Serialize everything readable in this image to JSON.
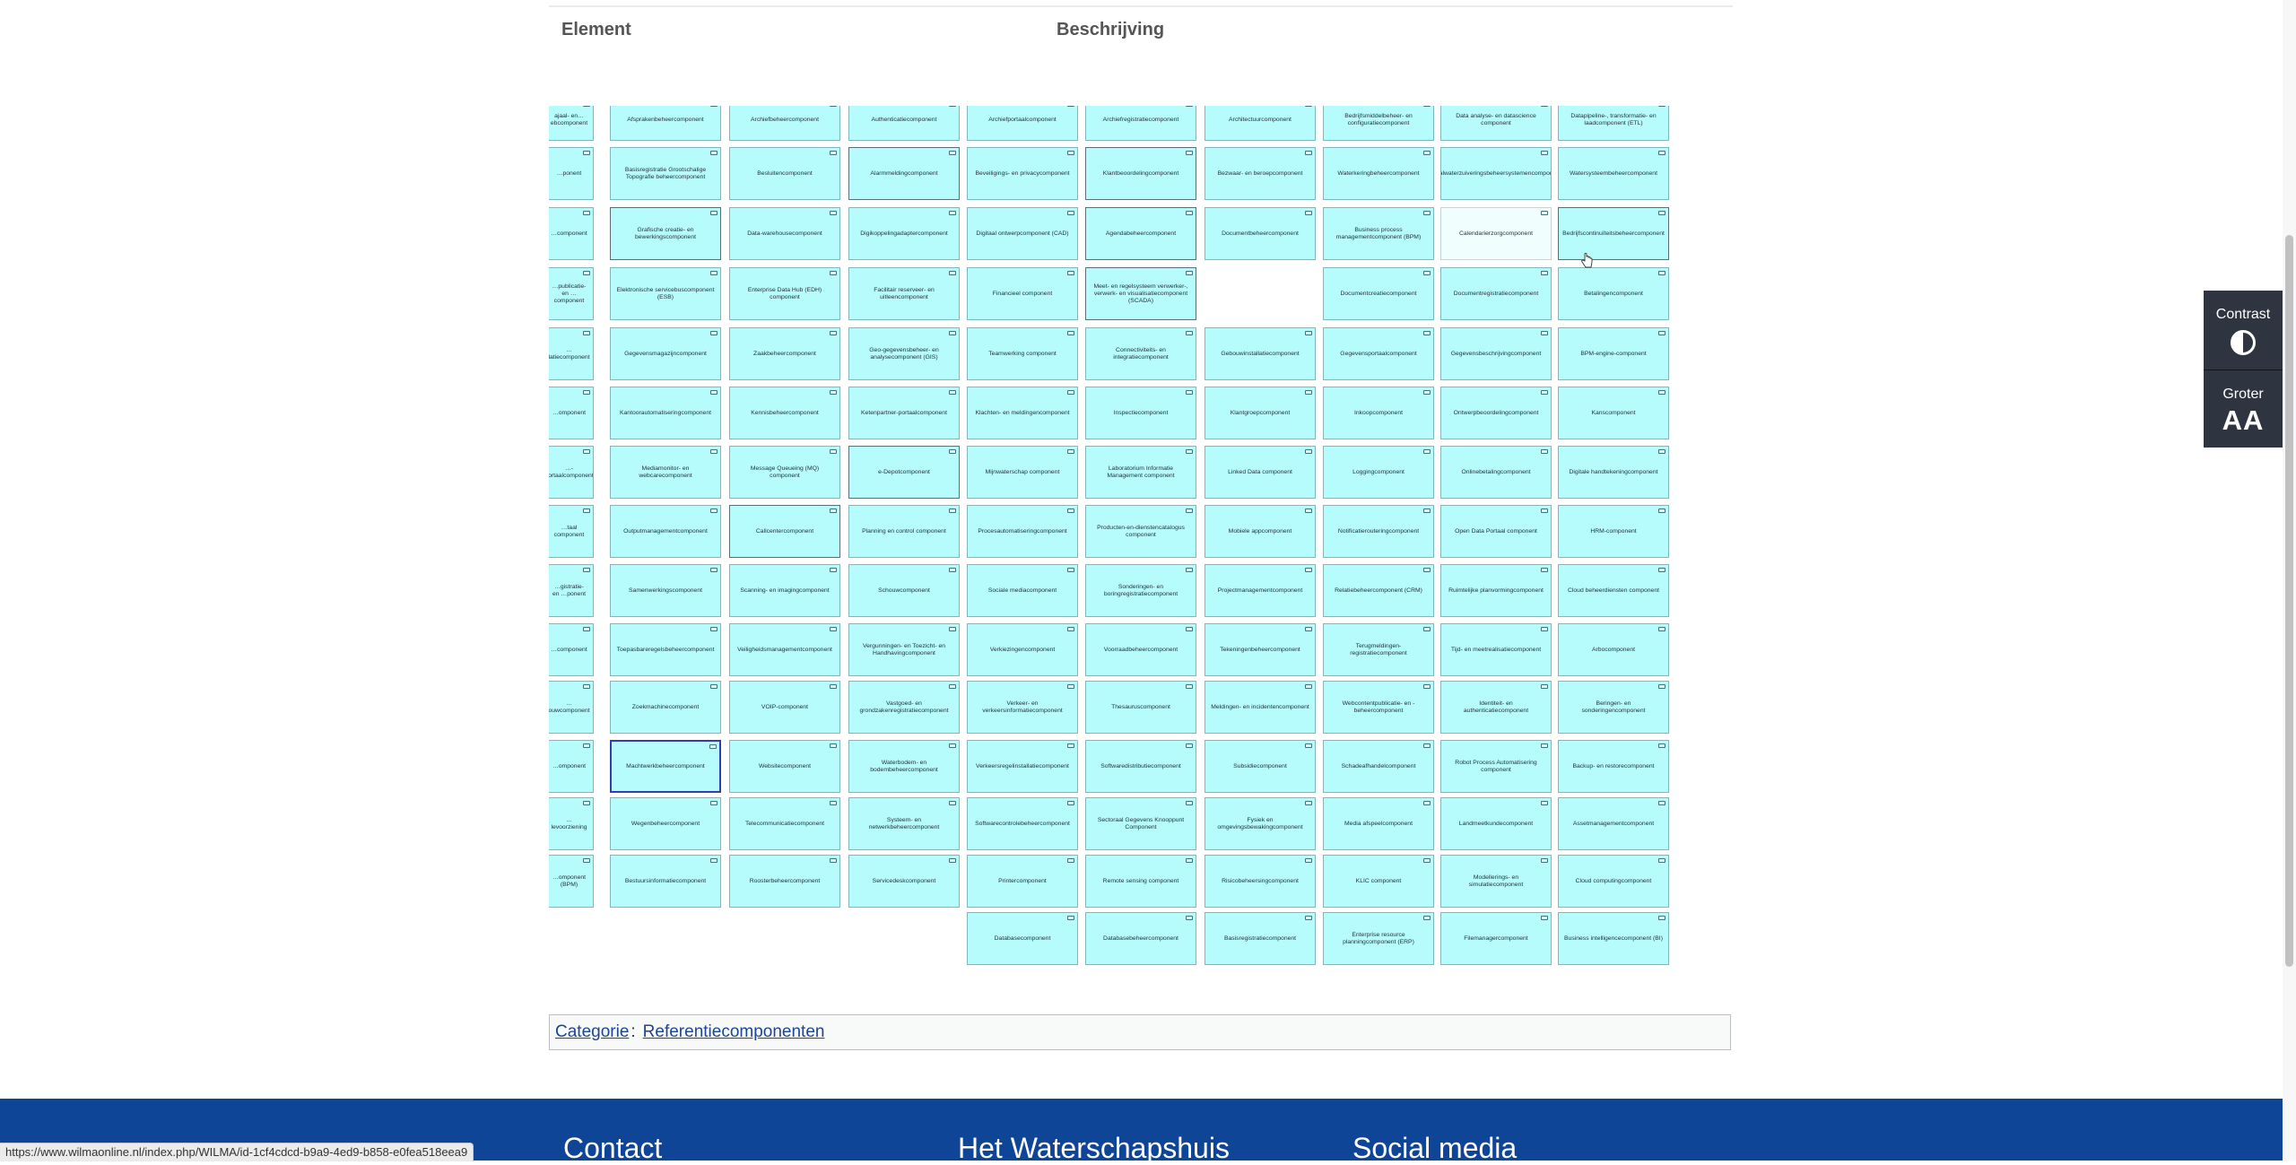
{
  "table": {
    "col_element": "Element",
    "col_description": "Beschrijving"
  },
  "diagram": {
    "cells": [
      {
        "col": 0,
        "row": 0,
        "label": "ajaal- en…ebcomponent"
      },
      {
        "col": 1,
        "row": 0,
        "label": "Afsprakenbeheercomponent"
      },
      {
        "col": 2,
        "row": 0,
        "label": "Archiefbeheercomponent"
      },
      {
        "col": 3,
        "row": 0,
        "label": "Authenticatiecomponent"
      },
      {
        "col": 4,
        "row": 0,
        "label": "Archiefportaalcomponent"
      },
      {
        "col": 5,
        "row": 0,
        "label": "Archiefregistratiecomponent"
      },
      {
        "col": 6,
        "row": 0,
        "label": "Architectuurcomponent"
      },
      {
        "col": 7,
        "row": 0,
        "label": "Bedrijfsmiddelbeheer- en configuratiecomponent"
      },
      {
        "col": 8,
        "row": 0,
        "label": "Data analyse- en datascience component"
      },
      {
        "col": 9,
        "row": 0,
        "label": "Datapipeline-, transformatie- en laadcomponent (ETL)"
      },
      {
        "col": 0,
        "row": 1,
        "label": "…ponent"
      },
      {
        "col": 1,
        "row": 1,
        "label": "Basisregistratie Grootschalige Topografie beheercomponent"
      },
      {
        "col": 2,
        "row": 1,
        "label": "Besluitencomponent"
      },
      {
        "col": 3,
        "row": 1,
        "label": "Alarmmeldingcomponent",
        "style": "dark"
      },
      {
        "col": 4,
        "row": 1,
        "label": "Beveiligings- en privacycomponent"
      },
      {
        "col": 5,
        "row": 1,
        "label": "Klantbeoordelingcomponent",
        "style": "dark"
      },
      {
        "col": 6,
        "row": 1,
        "label": "Bezwaar- en beroepcomponent"
      },
      {
        "col": 7,
        "row": 1,
        "label": "Waterkeringbeheercomponent"
      },
      {
        "col": 8,
        "row": 1,
        "label": "Afvalwaterzuiveringsbeheersystemencomponent"
      },
      {
        "col": 9,
        "row": 1,
        "label": "Watersysteembeheercomponent"
      },
      {
        "col": 0,
        "row": 2,
        "label": "…component"
      },
      {
        "col": 1,
        "row": 2,
        "label": "Grafische creatie- en bewerkingscomponent",
        "style": "dark"
      },
      {
        "col": 2,
        "row": 2,
        "label": "Data-warehousecomponent"
      },
      {
        "col": 3,
        "row": 2,
        "label": "Digikoppelingadaptercomponent"
      },
      {
        "col": 4,
        "row": 2,
        "label": "Digitaal ontwerpcomponent (CAD)"
      },
      {
        "col": 5,
        "row": 2,
        "label": "Agendabeheercomponent",
        "style": "dark"
      },
      {
        "col": 6,
        "row": 2,
        "label": "Documentbeheercomponent"
      },
      {
        "col": 7,
        "row": 2,
        "label": "Business process managementcomponent (BPM)"
      },
      {
        "col": 8,
        "row": 2,
        "label": "Calendarierzorgcomponent",
        "style": "light"
      },
      {
        "col": 9,
        "row": 2,
        "label": "Bedrijfscontinuïteitsbeheercomponent",
        "style": "dark"
      },
      {
        "col": 0,
        "row": 3,
        "label": "…publicatie- en …component"
      },
      {
        "col": 1,
        "row": 3,
        "label": "Elektronische servicebuscomponent (ESB)"
      },
      {
        "col": 2,
        "row": 3,
        "label": "Enterprise Data Hub (EDH) component"
      },
      {
        "col": 3,
        "row": 3,
        "label": "Facilitair reserveer- en uitleencomponent"
      },
      {
        "col": 4,
        "row": 3,
        "label": "Financieel component"
      },
      {
        "col": 5,
        "row": 3,
        "label": "Meet- en regelsysteem verwerker-, verwerk- en visualisatiecomponent (SCADA)",
        "style": "dark"
      },
      {
        "col": 7,
        "row": 3,
        "label": "Documentcreatiecomponent"
      },
      {
        "col": 8,
        "row": 3,
        "label": "Documentregistratiecomponent"
      },
      {
        "col": 9,
        "row": 3,
        "label": "Betalingencomponent"
      },
      {
        "col": 0,
        "row": 4,
        "label": "…latiecomponent"
      },
      {
        "col": 1,
        "row": 4,
        "label": "Gegevensmagazijncomponent"
      },
      {
        "col": 2,
        "row": 4,
        "label": "Zaakbeheercomponent"
      },
      {
        "col": 3,
        "row": 4,
        "label": "Geo-gegevensbeheer- en analysecomponent (GIS)"
      },
      {
        "col": 4,
        "row": 4,
        "label": "Teamwerking component"
      },
      {
        "col": 5,
        "row": 4,
        "label": "Connectiviteits- en integratiecomponent"
      },
      {
        "col": 6,
        "row": 4,
        "label": "Gebouwinstallatiecomponent"
      },
      {
        "col": 7,
        "row": 4,
        "label": "Gegevensportaalcomponent"
      },
      {
        "col": 8,
        "row": 4,
        "label": "Gegevensbeschrijvingcomponent"
      },
      {
        "col": 9,
        "row": 4,
        "label": "BPM-engine-component"
      },
      {
        "col": 0,
        "row": 5,
        "label": "…omponent"
      },
      {
        "col": 1,
        "row": 5,
        "label": "Kantoorautomatiseringcomponent"
      },
      {
        "col": 2,
        "row": 5,
        "label": "Kennisbeheercomponent"
      },
      {
        "col": 3,
        "row": 5,
        "label": "Ketenpartner-portaalcomponent"
      },
      {
        "col": 4,
        "row": 5,
        "label": "Klachten- en meldingencomponent"
      },
      {
        "col": 5,
        "row": 5,
        "label": "Inspectiecomponent"
      },
      {
        "col": 6,
        "row": 5,
        "label": "Klantgroepcomponent"
      },
      {
        "col": 7,
        "row": 5,
        "label": "Inkoopcomponent"
      },
      {
        "col": 8,
        "row": 5,
        "label": "Ontwerpbeoordelingcomponent"
      },
      {
        "col": 9,
        "row": 5,
        "label": "Kanscomponent"
      },
      {
        "col": 0,
        "row": 6,
        "label": "…-portaalcomponent"
      },
      {
        "col": 1,
        "row": 6,
        "label": "Mediamonitor- en webcarecomponent"
      },
      {
        "col": 2,
        "row": 6,
        "label": "Message Queueing (MQ) component"
      },
      {
        "col": 3,
        "row": 6,
        "label": "e-Depotcomponent",
        "style": "dark"
      },
      {
        "col": 4,
        "row": 6,
        "label": "Mijnwaterschap component"
      },
      {
        "col": 5,
        "row": 6,
        "label": "Laboratorium Informatie Management component"
      },
      {
        "col": 6,
        "row": 6,
        "label": "Linked Data component"
      },
      {
        "col": 7,
        "row": 6,
        "label": "Loggingcomponent"
      },
      {
        "col": 8,
        "row": 6,
        "label": "Onlinebetalingcomponent"
      },
      {
        "col": 9,
        "row": 6,
        "label": "Digitale handtekeningcomponent"
      },
      {
        "col": 0,
        "row": 7,
        "label": "…taal component"
      },
      {
        "col": 1,
        "row": 7,
        "label": "Outputmanagementcomponent"
      },
      {
        "col": 2,
        "row": 7,
        "label": "Callcentercomponent",
        "style": "dark"
      },
      {
        "col": 3,
        "row": 7,
        "label": "Planning en control component"
      },
      {
        "col": 4,
        "row": 7,
        "label": "Procesautomatiseringcomponent"
      },
      {
        "col": 5,
        "row": 7,
        "label": "Producten-en-dienstencatalogus component"
      },
      {
        "col": 6,
        "row": 7,
        "label": "Mobiele appcomponent"
      },
      {
        "col": 7,
        "row": 7,
        "label": "Notificatierouteringcomponent"
      },
      {
        "col": 8,
        "row": 7,
        "label": "Open Data Portaal component"
      },
      {
        "col": 9,
        "row": 7,
        "label": "HRM-component"
      },
      {
        "col": 0,
        "row": 8,
        "label": "…gistratie- en …ponent"
      },
      {
        "col": 1,
        "row": 8,
        "label": "Samenwerkingscomponent"
      },
      {
        "col": 2,
        "row": 8,
        "label": "Scanning- en imagingcomponent"
      },
      {
        "col": 3,
        "row": 8,
        "label": "Schouwcomponent"
      },
      {
        "col": 4,
        "row": 8,
        "label": "Sociale mediacomponent"
      },
      {
        "col": 5,
        "row": 8,
        "label": "Sonderingen- en boringregistratiecomponent"
      },
      {
        "col": 6,
        "row": 8,
        "label": "Projectmanagementcomponent"
      },
      {
        "col": 7,
        "row": 8,
        "label": "Relatiebeheercomponent (CRM)"
      },
      {
        "col": 8,
        "row": 8,
        "label": "Ruimtelijke planvormingcomponent"
      },
      {
        "col": 9,
        "row": 8,
        "label": "Cloud beheerdiensten component"
      },
      {
        "col": 0,
        "row": 9,
        "label": "…component"
      },
      {
        "col": 1,
        "row": 9,
        "label": "Toepasbareregelsbeheercomponent"
      },
      {
        "col": 2,
        "row": 9,
        "label": "Veiligheidsmanagementcomponent"
      },
      {
        "col": 3,
        "row": 9,
        "label": "Vergunningen- en Toezicht- en Handhavingcomponent"
      },
      {
        "col": 4,
        "row": 9,
        "label": "Verkiezingencomponent"
      },
      {
        "col": 5,
        "row": 9,
        "label": "Voorraadbeheercomponent"
      },
      {
        "col": 6,
        "row": 9,
        "label": "Tekeningenbeheercomponent"
      },
      {
        "col": 7,
        "row": 9,
        "label": "Terugmeldingen-registratiecomponent"
      },
      {
        "col": 8,
        "row": 9,
        "label": "Tijd- en meetrealisatiecomponent"
      },
      {
        "col": 9,
        "row": 9,
        "label": "Arbocomponent"
      },
      {
        "col": 0,
        "row": 10,
        "label": "…ouwcomponent"
      },
      {
        "col": 1,
        "row": 10,
        "label": "Zoekmachinecomponent"
      },
      {
        "col": 2,
        "row": 10,
        "label": "VOIP-component"
      },
      {
        "col": 3,
        "row": 10,
        "label": "Vastgoed- en grondzakenregistratiecomponent"
      },
      {
        "col": 4,
        "row": 10,
        "label": "Verkeer- en verkeersinformatiecomponent"
      },
      {
        "col": 5,
        "row": 10,
        "label": "Thesauruscomponent"
      },
      {
        "col": 6,
        "row": 10,
        "label": "Meldingen- en incidentencomponent"
      },
      {
        "col": 7,
        "row": 10,
        "label": "Webcontentpublicatie- en -beheercomponent"
      },
      {
        "col": 8,
        "row": 10,
        "label": "Identiteit- en authenticatiecomponent"
      },
      {
        "col": 9,
        "row": 10,
        "label": "Beringen- en sonderingencomponent"
      },
      {
        "col": 0,
        "row": 11,
        "label": "…omponent"
      },
      {
        "col": 1,
        "row": 11,
        "label": "Machtwerkbeheercomponent",
        "style": "sel"
      },
      {
        "col": 2,
        "row": 11,
        "label": "Websitecomponent"
      },
      {
        "col": 3,
        "row": 11,
        "label": "Waterbodem- en bodembeheercomponent"
      },
      {
        "col": 4,
        "row": 11,
        "label": "Verkeersregelinstallatiecomponent"
      },
      {
        "col": 5,
        "row": 11,
        "label": "Softwaredistributiecomponent"
      },
      {
        "col": 6,
        "row": 11,
        "label": "Subsidiecomponent"
      },
      {
        "col": 7,
        "row": 11,
        "label": "Schadeafhandelcomponent"
      },
      {
        "col": 8,
        "row": 11,
        "label": "Robot Process Automatisering component"
      },
      {
        "col": 9,
        "row": 11,
        "label": "Backup- en restorecomponent"
      },
      {
        "col": 0,
        "row": 12,
        "label": "…levoorziening"
      },
      {
        "col": 1,
        "row": 12,
        "label": "Wegenbeheercomponent"
      },
      {
        "col": 2,
        "row": 12,
        "label": "Telecommunicatiecomponent"
      },
      {
        "col": 3,
        "row": 12,
        "label": "Systeem- en netwerkbeheercomponent"
      },
      {
        "col": 4,
        "row": 12,
        "label": "Softwarecontrolebeheercomponent"
      },
      {
        "col": 5,
        "row": 12,
        "label": "Sectoraal Gegevens Knooppunt Component"
      },
      {
        "col": 6,
        "row": 12,
        "label": "Fysiek en omgevingsbewakingcomponent"
      },
      {
        "col": 7,
        "row": 12,
        "label": "Media afspeelcomponent"
      },
      {
        "col": 8,
        "row": 12,
        "label": "Landmeetkundecomponent"
      },
      {
        "col": 9,
        "row": 12,
        "label": "Assetmanagementcomponent"
      },
      {
        "col": 0,
        "row": 13,
        "label": "…omponent (BPM)"
      },
      {
        "col": 1,
        "row": 13,
        "label": "Bestuursinformatiecomponent"
      },
      {
        "col": 2,
        "row": 13,
        "label": "Roosterbeheercomponent"
      },
      {
        "col": 3,
        "row": 13,
        "label": "Servicedeskcomponent"
      },
      {
        "col": 4,
        "row": 13,
        "label": "Printercomponent"
      },
      {
        "col": 5,
        "row": 13,
        "label": "Remote sensing component"
      },
      {
        "col": 6,
        "row": 13,
        "label": "Risicobeheersingcomponent"
      },
      {
        "col": 7,
        "row": 13,
        "label": "KLIC component"
      },
      {
        "col": 8,
        "row": 13,
        "label": "Modellerings- en simulatiecomponent"
      },
      {
        "col": 9,
        "row": 13,
        "label": "Cloud computingcomponent"
      },
      {
        "col": 4,
        "row": 14,
        "label": "Databasecomponent"
      },
      {
        "col": 5,
        "row": 14,
        "label": "Databasebeheercomponent"
      },
      {
        "col": 6,
        "row": 14,
        "label": "Basisregistratiecomponent"
      },
      {
        "col": 7,
        "row": 14,
        "label": "Enterprise resource planningcomponent (ERP)"
      },
      {
        "col": 8,
        "row": 14,
        "label": "Filemanagercomponent"
      },
      {
        "col": 9,
        "row": 14,
        "label": "Business intelligencecomponent (BI)"
      }
    ]
  },
  "category": {
    "label": "Categorie",
    "separator": ":",
    "link": "Referentiecomponenten"
  },
  "footer": {
    "contact": "Contact",
    "waterschapshuis": "Het Waterschapshuis",
    "social": "Social media"
  },
  "accessibility": {
    "contrast": "Contrast",
    "bigger": "Groter",
    "bigger_icon": "AA"
  },
  "status_bar": {
    "url": "https://www.wilmaonline.nl/index.php/WILMA/id-1cf4cdcd-b9a9-4ed9-b858-e0fea518eea9"
  },
  "colors": {
    "cell_fill": "#b7fcfd",
    "footer_bg": "#0f4596",
    "a11y_bg": "#2e3540",
    "link": "#1c4596"
  }
}
